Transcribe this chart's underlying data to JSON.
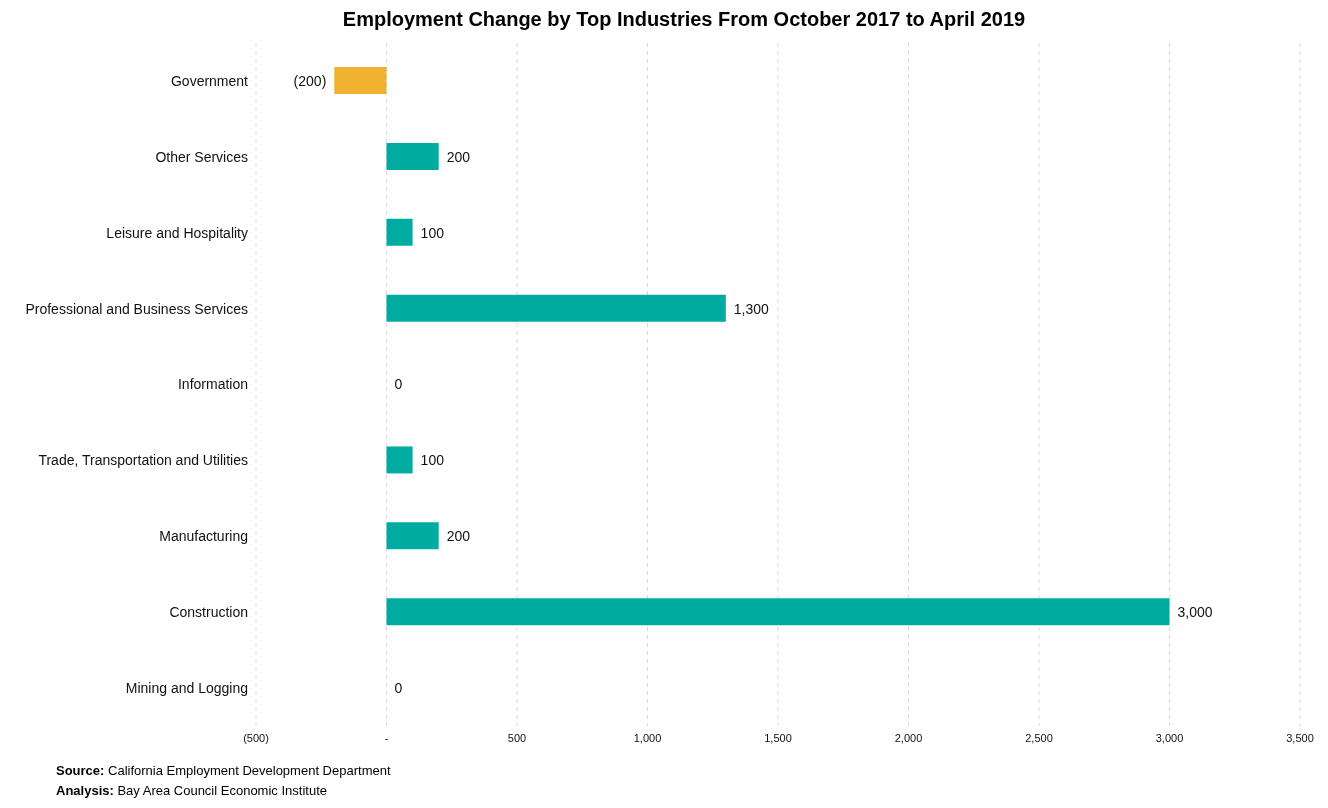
{
  "chart_data": {
    "type": "bar",
    "orientation": "horizontal",
    "title": "Employment Change by Top Industries From October 2017 to April 2019",
    "categories": [
      "Government",
      "Other Services",
      "Leisure and Hospitality",
      "Professional and Business Services",
      "Information",
      "Trade, Transportation and Utilities",
      "Manufacturing",
      "Construction",
      "Mining and Logging"
    ],
    "values": [
      -200,
      200,
      100,
      1300,
      0,
      100,
      200,
      3000,
      0
    ],
    "colors": [
      "#f0b030",
      "#00ab9f",
      "#00ab9f",
      "#00ab9f",
      "#00ab9f",
      "#00ab9f",
      "#00ab9f",
      "#00ab9f",
      "#00ab9f"
    ],
    "value_labels": [
      "(200)",
      "200",
      "100",
      "1,300",
      "0",
      "100",
      "200",
      "3,000",
      "0"
    ],
    "xlim": [
      -500,
      3500
    ],
    "xticks": [
      {
        "value": -500,
        "label": "(500)"
      },
      {
        "value": 0,
        "label": "-"
      },
      500,
      {
        "value": 1000,
        "label": "1,000"
      },
      {
        "value": 1500,
        "label": "1,500"
      },
      {
        "value": 2000,
        "label": "2,000"
      },
      {
        "value": 2500,
        "label": "2,500"
      },
      {
        "value": 3000,
        "label": "3,000"
      },
      {
        "value": 3500,
        "label": "3,500"
      }
    ],
    "grid": "x",
    "annotations": [
      "Source: California Employment Development Department",
      "Analysis: Bay Area Council Economic Institute"
    ]
  }
}
